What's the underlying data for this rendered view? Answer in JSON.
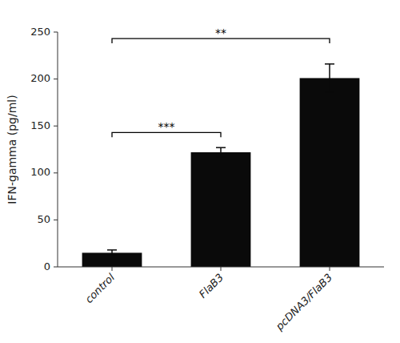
{
  "chart_data": {
    "type": "bar",
    "categories": [
      "control",
      "FlaB3",
      "pcDNA3/FlaB3"
    ],
    "values": [
      15.0,
      122.0,
      201.0
    ],
    "errors": [
      3.0,
      5.0,
      15.0
    ],
    "color": "#0a0a0a",
    "ylabel": "IFN-gamma (pg/ml)",
    "ylim": [
      0,
      250
    ],
    "yticks": [
      0,
      50,
      100,
      150,
      200,
      250
    ],
    "grid": false,
    "annotations": [
      {
        "text": "***",
        "x1": "control",
        "x2": "FlaB3",
        "y": 143,
        "tick": 5,
        "label_y": 145
      },
      {
        "text": "**",
        "x1": "control",
        "x2": "pcDNA3/FlaB3",
        "y": 243,
        "tick": 5,
        "label_y": 245
      }
    ]
  }
}
